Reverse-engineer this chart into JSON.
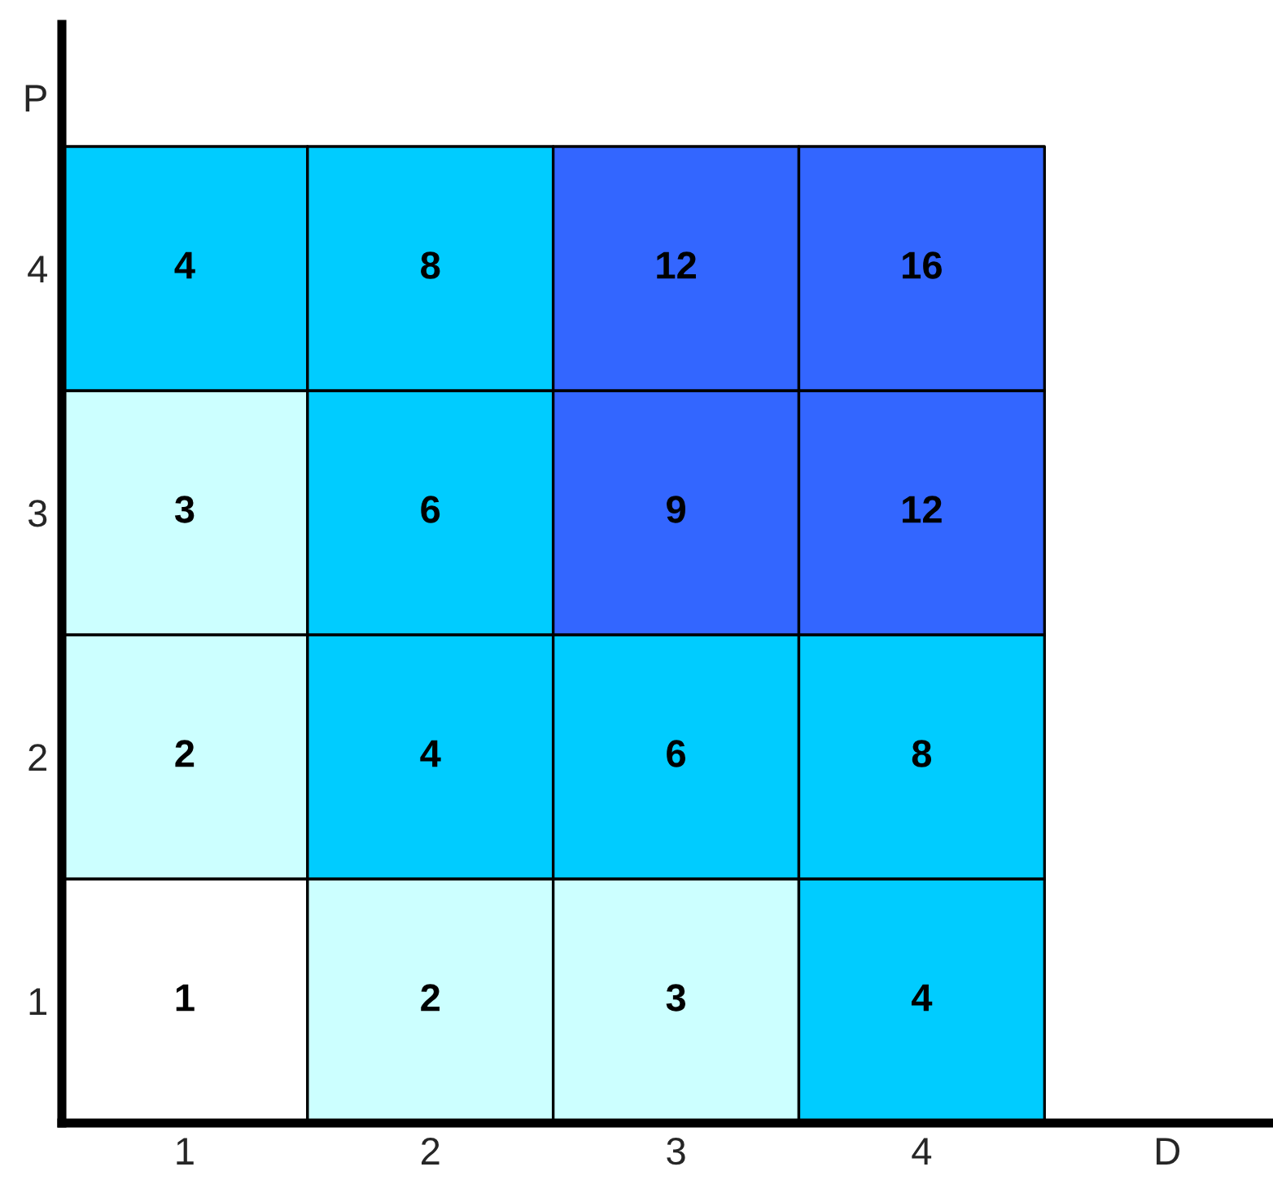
{
  "chart_data": {
    "type": "heatmap",
    "xlabel": "D",
    "ylabel": "P",
    "categories": [
      "1",
      "2",
      "3",
      "4"
    ],
    "y_categories": [
      "4",
      "3",
      "2",
      "1"
    ],
    "cells": [
      [
        4,
        8,
        12,
        16
      ],
      [
        3,
        6,
        9,
        12
      ],
      [
        2,
        4,
        6,
        8
      ],
      [
        1,
        2,
        3,
        4
      ]
    ],
    "colors": [
      [
        "#00ccff",
        "#00ccff",
        "#3366ff",
        "#3366ff"
      ],
      [
        "#ccffff",
        "#00ccff",
        "#3366ff",
        "#3366ff"
      ],
      [
        "#ccffff",
        "#00ccff",
        "#00ccff",
        "#00ccff"
      ],
      [
        "#ffffff",
        "#ccffff",
        "#ccffff",
        "#00ccff"
      ]
    ],
    "data_labels": true
  }
}
